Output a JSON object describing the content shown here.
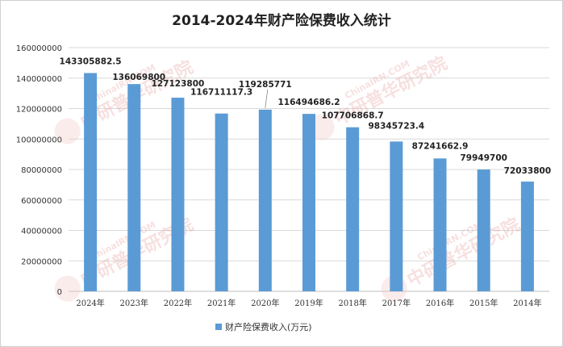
{
  "chart_data": {
    "type": "bar",
    "title": "2014-2024年财产险保费收入统计",
    "categories": [
      "2024年",
      "2023年",
      "2022年",
      "2021年",
      "2020年",
      "2019年",
      "2018年",
      "2017年",
      "2016年",
      "2015年",
      "2014年"
    ],
    "series": [
      {
        "name": "财产险保费收入(万元)",
        "values": [
          143305882.5,
          136069800,
          127123800,
          116711117.3,
          119285771,
          116494686.2,
          107706868.7,
          98345723.4,
          87241662.9,
          79949700,
          72033800
        ],
        "value_labels": [
          "143305882.5",
          "136069800",
          "127123800",
          "116711117.3",
          "119285771",
          "116494686.2",
          "107706868.7",
          "98345723.4",
          "87241662.9",
          "79949700",
          "72033800"
        ],
        "color": "#5b9bd5"
      }
    ],
    "ylim": [
      0,
      160000000
    ],
    "yticks": [
      0,
      20000000,
      40000000,
      60000000,
      80000000,
      100000000,
      120000000,
      140000000,
      160000000
    ],
    "ytick_labels": [
      "0",
      "20000000",
      "40000000",
      "60000000",
      "80000000",
      "100000000",
      "120000000",
      "140000000",
      "160000000"
    ],
    "grid": true,
    "legend_position": "bottom"
  },
  "watermark": {
    "site": "ChinaIRN.COM",
    "brand": "中研普华研究院",
    "logo": "CIRN"
  }
}
